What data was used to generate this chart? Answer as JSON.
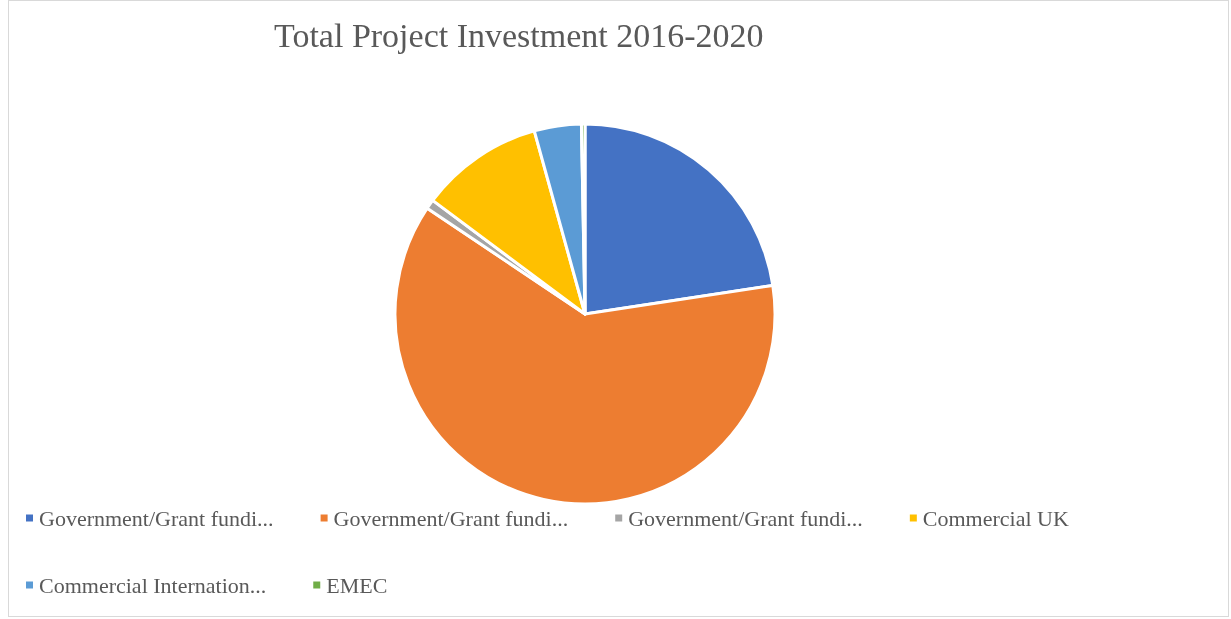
{
  "chart_data": {
    "type": "pie",
    "title": "Total Project Investment 2016-2020",
    "categories": [
      "Government/Grant fundi...",
      "Government/Grant fundi...",
      "Government/Grant fundi...",
      "Commercial UK",
      "Commercial Internation...",
      "EMEC"
    ],
    "values": [
      22.6,
      61.8,
      0.8,
      10.5,
      4.0,
      0.3
    ],
    "colors": [
      "#4472c4",
      "#ed7d31",
      "#a5a5a5",
      "#ffc000",
      "#5b9bd5",
      "#70ad47"
    ],
    "legend": "bottom"
  }
}
